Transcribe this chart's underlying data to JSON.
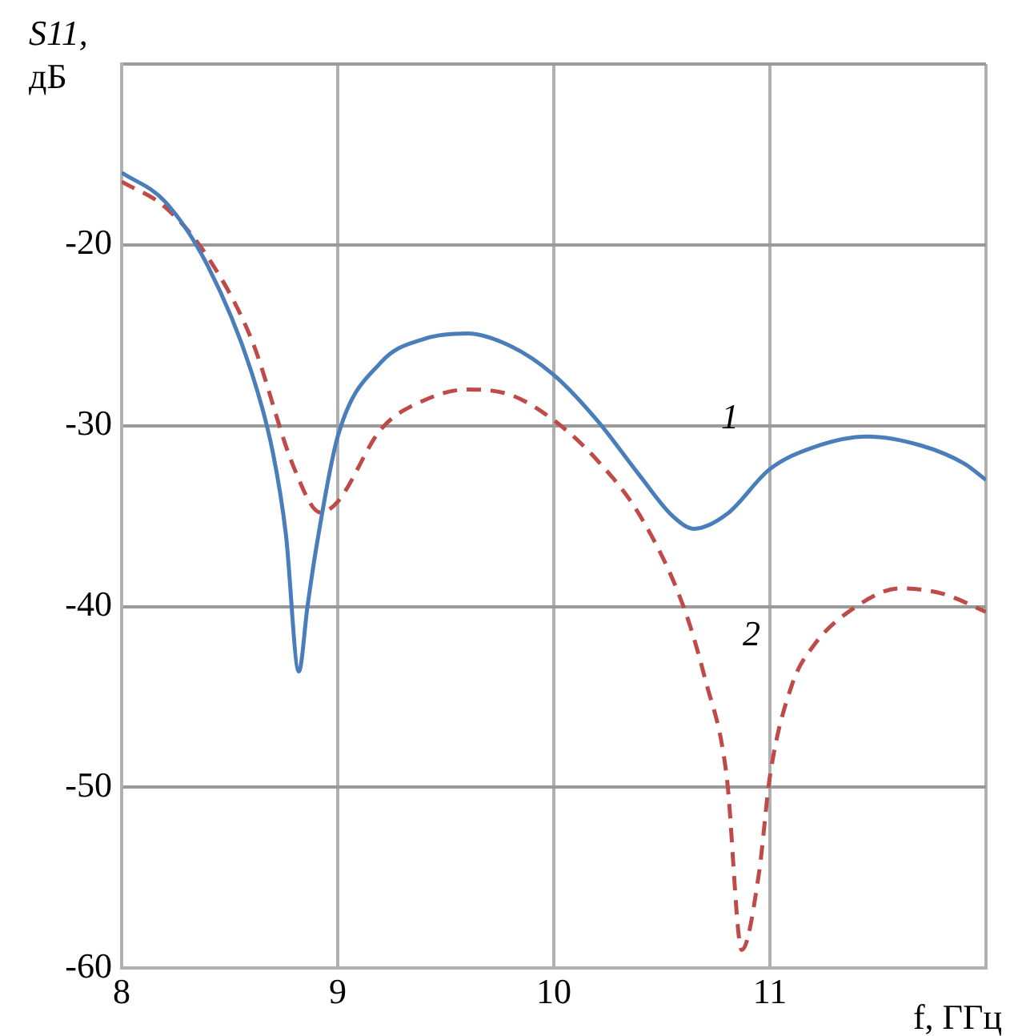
{
  "chart_data": {
    "type": "line",
    "xlabel": "f, ГГц",
    "ylabel": "S11, дБ",
    "xlim": [
      8,
      12
    ],
    "ylim": [
      -60,
      -10
    ],
    "xticks": [
      8,
      9,
      10,
      11,
      {
        "value": 12,
        "label": null
      }
    ],
    "yticks": [
      -60,
      -50,
      -40,
      -30,
      -20,
      {
        "value": -10,
        "label": null
      }
    ],
    "grid": true,
    "legend": false,
    "marker": "none",
    "series": [
      {
        "name": "1",
        "color": "#4a7ebb",
        "line_style": "solid",
        "x": [
          8,
          8.2,
          8.4,
          8.6,
          8.7,
          8.76,
          8.82,
          8.86,
          8.9,
          9,
          9.2,
          9.4,
          9.6,
          9.8,
          10,
          10.2,
          10.4,
          10.55,
          10.65,
          10.8,
          11,
          11.2,
          11.45,
          11.7,
          11.9,
          12
        ],
        "values": [
          -16,
          -17.6,
          -21.2,
          -27,
          -31.5,
          -36,
          -43.6,
          -40,
          -36.8,
          -30.6,
          -26.5,
          -25.2,
          -24.9,
          -25.6,
          -27.2,
          -29.7,
          -32.8,
          -35,
          -35.7,
          -34.9,
          -32.4,
          -31.2,
          -30.6,
          -31.1,
          -32.1,
          -33
        ]
      },
      {
        "name": "2",
        "color": "#be4b48",
        "line_style": "dashed",
        "x": [
          8,
          8.2,
          8.4,
          8.6,
          8.8,
          8.92,
          9,
          9.2,
          9.4,
          9.6,
          9.8,
          10,
          10.2,
          10.4,
          10.6,
          10.7,
          10.8,
          10.87,
          10.95,
          11,
          11.1,
          11.2,
          11.4,
          11.6,
          11.8,
          12
        ],
        "values": [
          -16.5,
          -17.9,
          -20.7,
          -25.2,
          -32.4,
          -34.8,
          -34.2,
          -30.2,
          -28.6,
          -28,
          -28.3,
          -29.7,
          -31.9,
          -35,
          -40,
          -44,
          -49.4,
          -59,
          -54.7,
          -49.4,
          -44.4,
          -42.2,
          -40,
          -39,
          -39.3,
          -40.3
        ]
      }
    ]
  }
}
